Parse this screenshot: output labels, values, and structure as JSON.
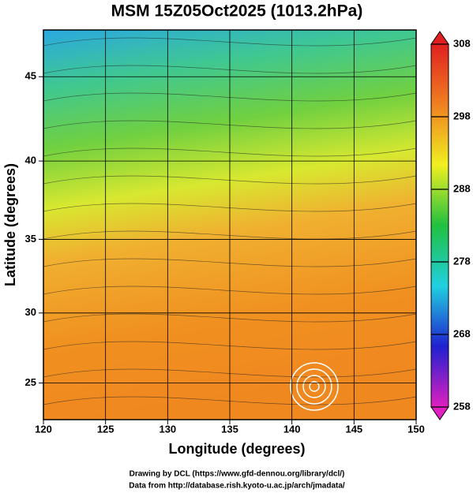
{
  "chart_data": {
    "type": "map",
    "title": "MSM 15Z05Oct2025 (1013.2hPa)",
    "x_label": "Longitude (degrees)",
    "y_label": "Latitude  (degrees)",
    "projection": "mercator",
    "xlim": [
      120,
      150
    ],
    "xticks": [
      120,
      125,
      130,
      135,
      140,
      145,
      150
    ],
    "ylim": [
      22.3,
      47.6
    ],
    "yticks": [
      25,
      30,
      35,
      40,
      45
    ],
    "grid": true,
    "colorbar": {
      "lim": [
        258,
        308
      ],
      "ticks": [
        258,
        268,
        278,
        288,
        298,
        308
      ],
      "colors": [
        "#e020c0",
        "#2020d0",
        "#20d0e0",
        "#20c040",
        "#f0f020",
        "#f08020",
        "#e02020"
      ]
    },
    "footer": [
      "Drawing by DCL (https://www.gfd-dennou.org/library/dcl/)",
      "Data from http://database.rish.kyoto-u.ac.jp/arch/jmadata/"
    ]
  }
}
